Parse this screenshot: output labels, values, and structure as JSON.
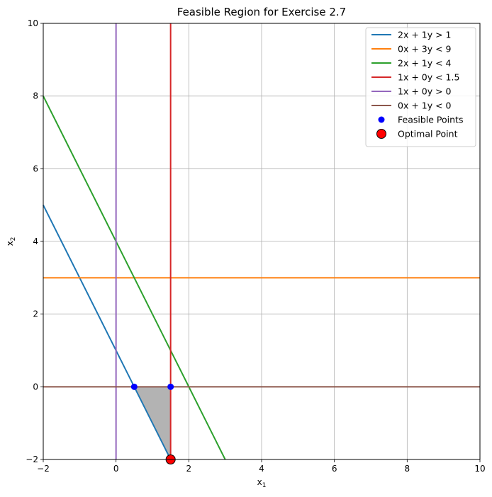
{
  "chart_data": {
    "type": "line",
    "title": "Feasible Region for Exercise 2.7",
    "xlabel": "x",
    "xlabel_sub": "1",
    "ylabel": "x",
    "ylabel_sub": "2",
    "xlim": [
      -2,
      10
    ],
    "ylim": [
      -2,
      10
    ],
    "xticks": [
      -2,
      0,
      2,
      4,
      6,
      8,
      10
    ],
    "yticks": [
      -2,
      0,
      2,
      4,
      6,
      8,
      10
    ],
    "grid": true,
    "legend_position": "top-right",
    "constraints": [
      {
        "label": "2x + 1y > 1",
        "a": 2,
        "b": 1,
        "c": 1,
        "color": "#1f77b4"
      },
      {
        "label": "0x + 3y < 9",
        "a": 0,
        "b": 3,
        "c": 9,
        "color": "#ff7f0e"
      },
      {
        "label": "2x + 1y < 4",
        "a": 2,
        "b": 1,
        "c": 4,
        "color": "#2ca02c"
      },
      {
        "label": "1x + 0y < 1.5",
        "a": 1,
        "b": 0,
        "c": 1.5,
        "color": "#d62728"
      },
      {
        "label": "1x + 0y > 0",
        "a": 1,
        "b": 0,
        "c": 0,
        "color": "#9467bd"
      },
      {
        "label": "0x + 1y < 0",
        "a": 0,
        "b": 1,
        "c": 0,
        "color": "#8c564b"
      }
    ],
    "feasible_region": [
      [
        0.5,
        0
      ],
      [
        1.5,
        0
      ],
      [
        1.5,
        -2
      ]
    ],
    "feasible_region_color": "#b3b3b3",
    "feasible_points": {
      "label": "Feasible Points",
      "color": "#0000ff",
      "points": [
        [
          0.5,
          0
        ],
        [
          1.5,
          0
        ]
      ]
    },
    "optimal_point": {
      "label": "Optimal Point",
      "color": "#ff0000",
      "point": [
        1.5,
        -2
      ]
    }
  }
}
